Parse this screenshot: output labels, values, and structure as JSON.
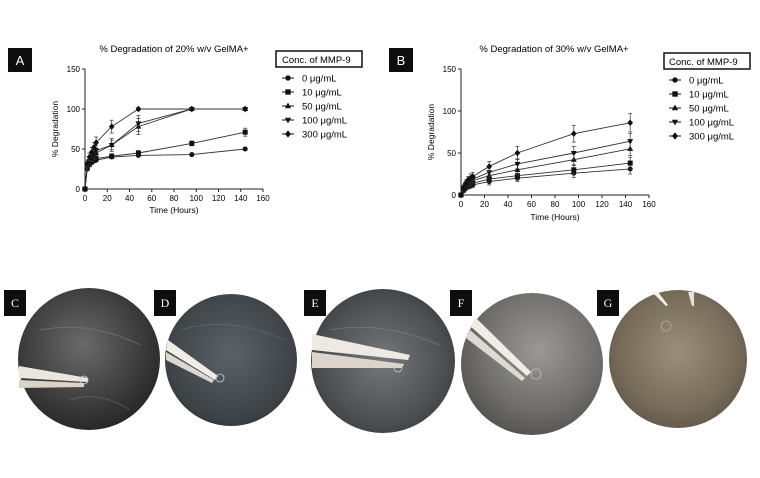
{
  "panels": {
    "A": "A",
    "B": "B",
    "C": "C",
    "D": "D",
    "E": "E",
    "F": "F",
    "G": "G"
  },
  "legend": {
    "title": "Conc. of MMP-9",
    "entries": [
      "0 μg/mL",
      "10 μg/mL",
      "50 μg/mL",
      "100 μg/mL",
      "300 μg/mL"
    ]
  },
  "chart_data": [
    {
      "type": "line",
      "title": "% Degradation of 20% w/v GelMA+",
      "xlabel": "Time (Hours)",
      "ylabel": "% Degradation",
      "xlim": [
        0,
        160
      ],
      "ylim": [
        0,
        150
      ],
      "xticks": [
        0,
        20,
        40,
        60,
        80,
        100,
        120,
        140,
        160
      ],
      "yticks": [
        0,
        50,
        100,
        150
      ],
      "grid": false,
      "legend_position": "right",
      "x": [
        0,
        2,
        4,
        6,
        8,
        10,
        24,
        48,
        96,
        144
      ],
      "series": [
        {
          "name": "0 μg/mL",
          "marker": "circle",
          "values": [
            0,
            25,
            30,
            33,
            35,
            36,
            40,
            42,
            43,
            50
          ],
          "errors": [
            0,
            2,
            2,
            2,
            2,
            2,
            2,
            2,
            2,
            2
          ]
        },
        {
          "name": "10 μg/mL",
          "marker": "square",
          "values": [
            0,
            26,
            31,
            34,
            36,
            38,
            41,
            45,
            57,
            71
          ],
          "errors": [
            0,
            2,
            3,
            3,
            3,
            3,
            3,
            3,
            3,
            5
          ]
        },
        {
          "name": "50 μg/mL",
          "marker": "triangle-up",
          "values": [
            0,
            28,
            33,
            38,
            42,
            45,
            55,
            78,
            100,
            100
          ],
          "errors": [
            0,
            3,
            4,
            4,
            5,
            5,
            6,
            10,
            2,
            2
          ]
        },
        {
          "name": "100 μg/mL",
          "marker": "triangle-down",
          "values": [
            0,
            30,
            35,
            40,
            44,
            48,
            55,
            82,
            100,
            100
          ],
          "errors": [
            0,
            3,
            4,
            5,
            5,
            6,
            8,
            10,
            2,
            2
          ]
        },
        {
          "name": "300 μg/mL",
          "marker": "diamond",
          "values": [
            0,
            32,
            40,
            46,
            52,
            58,
            78,
            100,
            100,
            100
          ],
          "errors": [
            0,
            4,
            5,
            6,
            6,
            7,
            8,
            2,
            2,
            2
          ]
        }
      ]
    },
    {
      "type": "line",
      "title": "% Degradation of 30% w/v GelMA+",
      "xlabel": "Time (Hours)",
      "ylabel": "% Degradation",
      "xlim": [
        0,
        160
      ],
      "ylim": [
        0,
        150
      ],
      "xticks": [
        0,
        20,
        40,
        60,
        80,
        100,
        120,
        140,
        160
      ],
      "yticks": [
        0,
        50,
        100,
        150
      ],
      "grid": false,
      "legend_position": "right",
      "x": [
        0,
        2,
        4,
        6,
        8,
        10,
        24,
        48,
        96,
        144
      ],
      "series": [
        {
          "name": "0 μg/mL",
          "marker": "circle",
          "values": [
            0,
            5,
            8,
            10,
            11,
            12,
            16,
            20,
            26,
            31
          ],
          "errors": [
            0,
            2,
            3,
            3,
            3,
            3,
            4,
            4,
            5,
            6
          ]
        },
        {
          "name": "10 μg/mL",
          "marker": "square",
          "values": [
            0,
            6,
            10,
            12,
            13,
            14,
            19,
            23,
            30,
            38
          ],
          "errors": [
            0,
            2,
            3,
            3,
            3,
            4,
            4,
            5,
            6,
            7
          ]
        },
        {
          "name": "50 μg/mL",
          "marker": "triangle-up",
          "values": [
            0,
            7,
            11,
            14,
            15,
            17,
            23,
            30,
            42,
            55
          ],
          "errors": [
            0,
            2,
            3,
            3,
            4,
            4,
            5,
            6,
            7,
            8
          ]
        },
        {
          "name": "100 μg/mL",
          "marker": "triangle-down",
          "values": [
            0,
            8,
            12,
            15,
            17,
            19,
            27,
            37,
            50,
            64
          ],
          "errors": [
            0,
            2,
            3,
            4,
            4,
            4,
            5,
            6,
            8,
            9
          ]
        },
        {
          "name": "300 μg/mL",
          "marker": "diamond",
          "values": [
            0,
            9,
            14,
            18,
            20,
            22,
            34,
            50,
            73,
            86
          ],
          "errors": [
            0,
            3,
            4,
            4,
            5,
            5,
            6,
            8,
            10,
            11
          ]
        }
      ]
    }
  ]
}
